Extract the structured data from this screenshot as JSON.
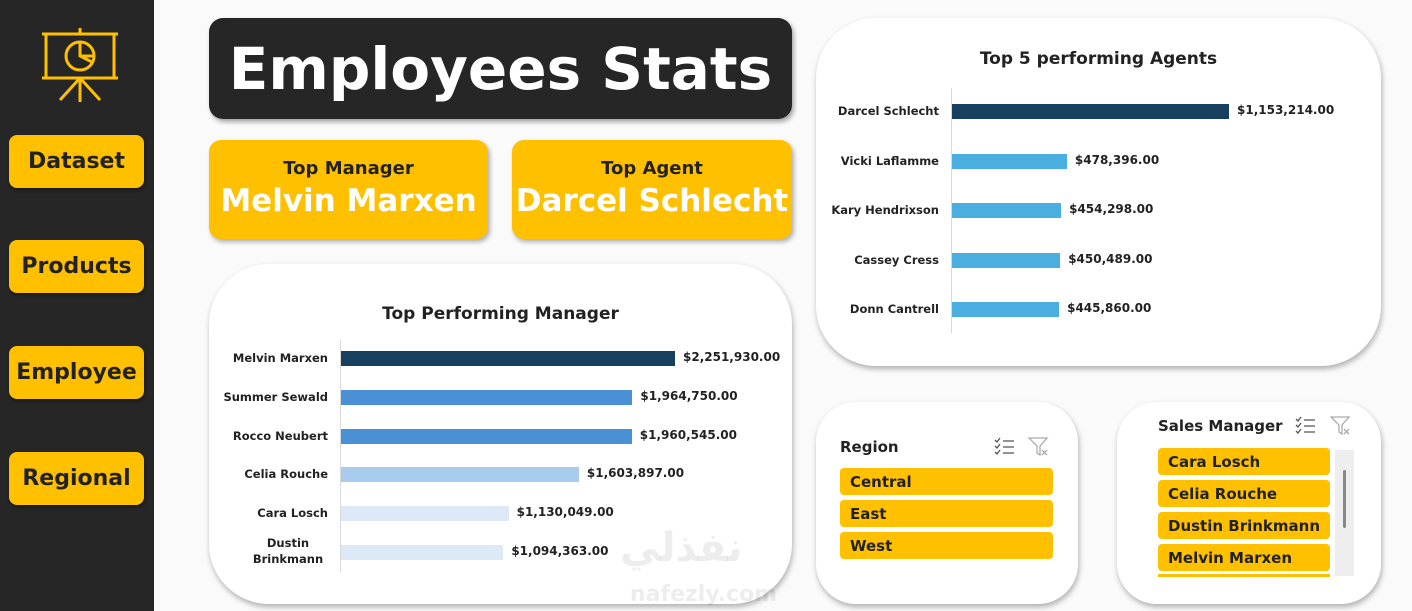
{
  "sidebar": {
    "logo_icon": "presentation-pie-chart-icon",
    "items": [
      {
        "label": "Dataset"
      },
      {
        "label": "Products"
      },
      {
        "label": "Employee"
      },
      {
        "label": "Regional"
      }
    ]
  },
  "header": {
    "title": "Employees Stats"
  },
  "kpis": {
    "top_manager": {
      "label": "Top Manager",
      "value": "Melvin Marxen"
    },
    "top_agent": {
      "label": "Top Agent",
      "value": "Darcel Schlecht"
    }
  },
  "colors": {
    "accent": "#ffc000",
    "dark": "#262626"
  },
  "chart_data": [
    {
      "type": "bar",
      "orientation": "horizontal",
      "title": "Top Performing Manager",
      "categories": [
        "Melvin Marxen",
        "Summer Sewald",
        "Rocco Neubert",
        "Celia Rouche",
        "Cara Losch",
        "Dustin Brinkmann"
      ],
      "values": [
        2251930,
        1964750,
        1960545,
        1603897,
        1130049,
        1094363
      ],
      "data_labels": [
        "$2,251,930.00",
        "$1,964,750.00",
        "$1,960,545.00",
        "$1,603,897.00",
        "$1,130,049.00",
        "$1,094,363.00"
      ],
      "colors": [
        "#17405e",
        "#4a90d4",
        "#4a90d4",
        "#a9cbed",
        "#dde9f6",
        "#dde9f6"
      ]
    },
    {
      "type": "bar",
      "orientation": "horizontal",
      "title": "Top 5 performing Agents",
      "categories": [
        "Darcel Schlecht",
        "Vicki Laflamme",
        "Kary Hendrixson",
        "Cassey Cress",
        "Donn Cantrell"
      ],
      "values": [
        1153214,
        478396,
        454298,
        450489,
        445860
      ],
      "data_labels": [
        "$1,153,214.00",
        "$478,396.00",
        "$454,298.00",
        "$450,489.00",
        "$445,860.00"
      ],
      "colors": [
        "#17405e",
        "#4aaee0",
        "#4aaee0",
        "#4aaee0",
        "#4aaee0"
      ]
    }
  ],
  "slicers": {
    "region": {
      "title": "Region",
      "items": [
        "Central",
        "East",
        "West"
      ],
      "icons": [
        "multi-select-icon",
        "clear-filter-icon"
      ]
    },
    "sales_manager": {
      "title": "Sales Manager",
      "items": [
        "Cara Losch",
        "Celia Rouche",
        "Dustin Brinkmann",
        "Melvin Marxen"
      ],
      "icons": [
        "multi-select-icon",
        "clear-filter-icon"
      ]
    }
  },
  "watermark": {
    "arabic": "نفذلي",
    "latin": "nafezly.com"
  }
}
